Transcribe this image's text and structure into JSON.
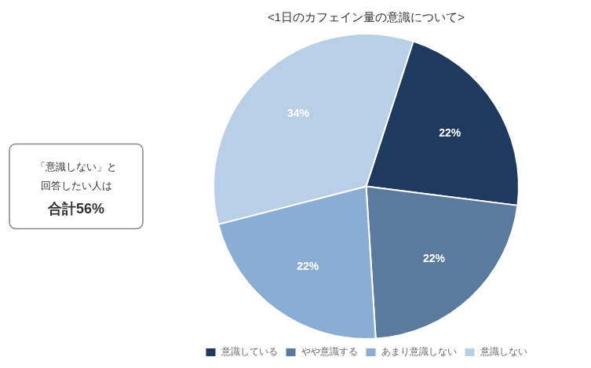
{
  "chart_data": {
    "type": "pie",
    "title": "<1日のカフェイン量の意識について>",
    "categories": [
      "意識している",
      "やや意識する",
      "あまり意識しない",
      "意識しない"
    ],
    "values": [
      22,
      22,
      22,
      34
    ],
    "value_labels": [
      "22%",
      "22%",
      "22%",
      "34%"
    ],
    "colors": [
      "#1e3a5f",
      "#5a7a9e",
      "#8aadd4",
      "#b8cfe8"
    ],
    "data_labels": true,
    "legend": "bottom",
    "annotations": [
      "「意識しない」と",
      "回答したい人は",
      "合計56%"
    ]
  }
}
